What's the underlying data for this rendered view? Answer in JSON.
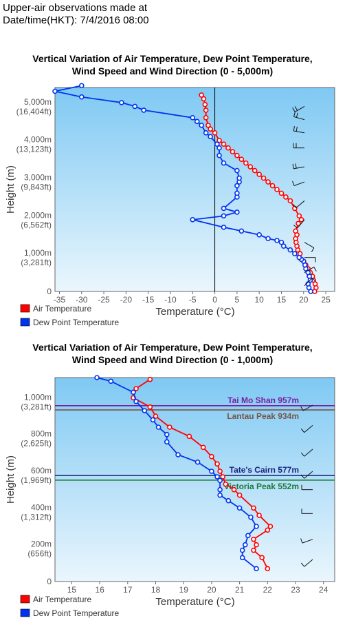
{
  "header": {
    "line1": "Upper-air observations made at",
    "line2": "Date/time(HKT): 7/4/2016 08:00"
  },
  "colors": {
    "air": "#ff0000",
    "dew": "#0033ee",
    "bg_top": "#7fc9f3",
    "bg_bottom": "#eaf6fd"
  },
  "chart_data": [
    {
      "type": "line",
      "title": "Vertical Variation of Air Temperature, Dew Point Temperature, Wind Speed and Wind Direction (0 - 5,000m)",
      "title_lines": [
        "Vertical Variation of Air Temperature, Dew Point Temperature,",
        "Wind Speed and Wind Direction (0 - 5,000m)"
      ],
      "xlabel": "Temperature (°C)",
      "ylabel": "Height (m)",
      "xlim": [
        -36,
        27
      ],
      "ylim": [
        0,
        5400
      ],
      "x_ticks": [
        "-35",
        "-30",
        "-25",
        "-20",
        "-15",
        "-10",
        "-5",
        "0",
        "5",
        "10",
        "15",
        "20",
        "25"
      ],
      "y_ticks": [
        {
          "v": 0,
          "l1": "0",
          "l2": ""
        },
        {
          "v": 1000,
          "l1": "1,000m",
          "l2": "(3,281ft)"
        },
        {
          "v": 2000,
          "l1": "2,000m",
          "l2": "(6,562ft)"
        },
        {
          "v": 3000,
          "l1": "3,000m",
          "l2": "(9,843ft)"
        },
        {
          "v": 4000,
          "l1": "4,000m",
          "l2": "(13,123ft)"
        },
        {
          "v": 5000,
          "l1": "5,000m",
          "l2": "(16,404ft)"
        }
      ],
      "legend": [
        "Air Temperature",
        "Dew Point Temperature"
      ],
      "series": [
        {
          "name": "Air Temperature",
          "x": [
            22.5,
            22.8,
            22.6,
            22.2,
            22.0,
            21.5,
            21.0,
            20.5,
            20.0,
            19.5,
            19.0,
            19.2,
            18.7,
            18.5,
            18.3,
            18.2,
            18.5,
            18.2,
            18.8,
            19.5,
            19.0,
            18.0,
            17.0,
            16.0,
            15.0,
            14.0,
            13.0,
            12.0,
            11.0,
            10.0,
            9.0,
            8.0,
            7.0,
            6.0,
            5.0,
            4.0,
            3.0,
            2.0,
            1.0,
            0.0,
            -1.0,
            -1.5,
            -2.0,
            -2.0,
            -2.2,
            -2.5,
            -3.0
          ],
          "y": [
            0,
            100,
            200,
            300,
            400,
            500,
            600,
            700,
            800,
            850,
            900,
            1000,
            1100,
            1200,
            1300,
            1400,
            1500,
            1600,
            1800,
            1900,
            2000,
            2200,
            2400,
            2500,
            2600,
            2700,
            2800,
            2900,
            3000,
            3100,
            3200,
            3300,
            3400,
            3500,
            3600,
            3700,
            3800,
            3900,
            4000,
            4200,
            4300,
            4400,
            4600,
            4800,
            4950,
            5100,
            5200
          ]
        },
        {
          "name": "Dew Point Temperature",
          "x": [
            21.6,
            21.2,
            21.0,
            21.5,
            21.3,
            21.0,
            20.5,
            20.3,
            20.0,
            19.5,
            19.0,
            18.0,
            17.0,
            15.5,
            15.0,
            14.0,
            12.0,
            10.0,
            6.0,
            2.0,
            -5.0,
            2.0,
            5.0,
            2.0,
            5.0,
            5.0,
            5.0,
            5.5,
            5.5,
            5.0,
            2.0,
            1.0,
            1.0,
            0.5,
            -1.0,
            -2.0,
            -3.0,
            -4.0,
            -5.0,
            -16.0,
            -18.0,
            -21.0,
            -30.0,
            -36.0,
            -30.0
          ],
          "y": [
            0,
            100,
            200,
            300,
            400,
            500,
            600,
            700,
            800,
            850,
            900,
            1000,
            1100,
            1200,
            1300,
            1350,
            1400,
            1500,
            1600,
            1700,
            1900,
            2000,
            2100,
            2200,
            2500,
            2600,
            2800,
            2900,
            3000,
            3200,
            3400,
            3600,
            3800,
            3900,
            4100,
            4200,
            4400,
            4500,
            4600,
            4800,
            4900,
            5000,
            5150,
            5300,
            5450
          ]
        }
      ],
      "wind_barbs": [
        {
          "height": 150,
          "dir": 45,
          "speed": 5
        },
        {
          "height": 500,
          "dir": 60,
          "speed": 10
        },
        {
          "height": 900,
          "dir": 90,
          "speed": 10
        },
        {
          "height": 1300,
          "dir": 120,
          "speed": 10
        },
        {
          "height": 1900,
          "dir": 220,
          "speed": 10
        },
        {
          "height": 2400,
          "dir": 230,
          "speed": 10
        },
        {
          "height": 2900,
          "dir": 250,
          "speed": 10
        },
        {
          "height": 3300,
          "dir": 260,
          "speed": 15
        },
        {
          "height": 3800,
          "dir": 270,
          "speed": 15
        },
        {
          "height": 4200,
          "dir": 280,
          "speed": 15
        },
        {
          "height": 4550,
          "dir": 285,
          "speed": 20
        },
        {
          "height": 4900,
          "dir": 240,
          "speed": 15
        }
      ]
    },
    {
      "type": "line",
      "title": "Vertical Variation of Air Temperature, Dew Point Temperature, Wind Speed and Wind Direction (0 - 1,000m)",
      "title_lines": [
        "Vertical Variation of Air Temperature, Dew Point Temperature,",
        "Wind Speed and Wind Direction (0 - 1,000m)"
      ],
      "xlabel": "Temperature (°C)",
      "ylabel": "Height (m)",
      "xlim": [
        14.4,
        24.4
      ],
      "ylim": [
        0,
        1110
      ],
      "x_ticks": [
        "15",
        "16",
        "17",
        "18",
        "19",
        "20",
        "21",
        "22",
        "23",
        "24"
      ],
      "y_ticks": [
        {
          "v": 0,
          "l1": "0",
          "l2": ""
        },
        {
          "v": 200,
          "l1": "200m",
          "l2": "(656ft)"
        },
        {
          "v": 400,
          "l1": "400m",
          "l2": "(1,312ft)"
        },
        {
          "v": 600,
          "l1": "600m",
          "l2": "(1,969ft)"
        },
        {
          "v": 800,
          "l1": "800m",
          "l2": "(2,625ft)"
        },
        {
          "v": 1000,
          "l1": "1,000m",
          "l2": "(3,281ft)"
        }
      ],
      "legend": [
        "Air Temperature",
        "Dew Point Temperature"
      ],
      "reference_lines": [
        {
          "name": "Tai Mo Shan 957m",
          "height": 957,
          "color": "#7b1fa2"
        },
        {
          "name": "Lantau Peak 934m",
          "height": 934,
          "color": "#795548"
        },
        {
          "name": "Tate's Cairn 577m",
          "height": 577,
          "color": "#1a237e"
        },
        {
          "name": "Victoria Peak 552m",
          "height": 552,
          "color": "#1b7a3a"
        }
      ],
      "series": [
        {
          "name": "Air Temperature",
          "x": [
            22.0,
            21.8,
            21.5,
            21.6,
            21.5,
            22.0,
            22.1,
            21.7,
            21.5,
            21.0,
            20.8,
            20.5,
            20.4,
            20.3,
            20.2,
            20.0,
            19.7,
            19.2,
            18.5,
            18.0,
            17.8,
            17.2,
            17.3,
            17.8
          ],
          "y": [
            70,
            130,
            170,
            200,
            230,
            280,
            300,
            360,
            400,
            470,
            500,
            530,
            570,
            600,
            640,
            680,
            730,
            790,
            840,
            900,
            950,
            1000,
            1050,
            1100
          ]
        },
        {
          "name": "Dew Point Temperature",
          "x": [
            21.6,
            21.1,
            21.1,
            21.2,
            21.3,
            21.6,
            21.4,
            21.0,
            20.6,
            20.3,
            20.3,
            20.3,
            20.2,
            20.0,
            19.5,
            18.8,
            18.4,
            18.4,
            18.1,
            17.9,
            17.6,
            17.3,
            17.2,
            16.4,
            15.9
          ],
          "y": [
            70,
            130,
            170,
            200,
            250,
            300,
            350,
            400,
            440,
            470,
            500,
            550,
            570,
            600,
            650,
            690,
            760,
            800,
            840,
            880,
            930,
            980,
            1030,
            1090,
            1110
          ]
        }
      ],
      "wind_barbs": [
        {
          "height": 120,
          "dir": 230,
          "speed": 10
        },
        {
          "height": 230,
          "dir": 250,
          "speed": 10
        },
        {
          "height": 370,
          "dir": 270,
          "speed": 10
        },
        {
          "height": 500,
          "dir": 270,
          "speed": 10
        },
        {
          "height": 600,
          "dir": 230,
          "speed": 10
        },
        {
          "height": 720,
          "dir": 230,
          "speed": 10
        },
        {
          "height": 850,
          "dir": 230,
          "speed": 10
        },
        {
          "height": 960,
          "dir": 240,
          "speed": 10
        }
      ]
    }
  ]
}
